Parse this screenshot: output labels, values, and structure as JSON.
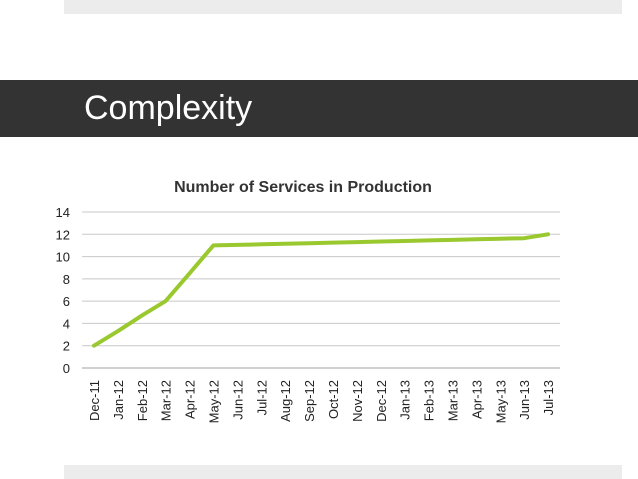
{
  "slide": {
    "title": "Complexity"
  },
  "colors": {
    "title_bar": "#333333",
    "series": "#9ac82f"
  },
  "chart_data": {
    "type": "line",
    "title": "Number of Services in Production",
    "xlabel": "",
    "ylabel": "",
    "categories": [
      "Dec-11",
      "Jan-12",
      "Feb-12",
      "Mar-12",
      "Apr-12",
      "May-12",
      "Jun-12",
      "Jul-12",
      "Aug-12",
      "Sep-12",
      "Oct-12",
      "Nov-12",
      "Dec-12",
      "Jan-13",
      "Feb-13",
      "Mar-13",
      "Apr-13",
      "May-13",
      "Jun-13",
      "Jul-13"
    ],
    "series": [
      {
        "values": [
          2,
          3.3,
          4.7,
          6,
          8.5,
          11,
          11.05,
          11.1,
          11.15,
          11.2,
          11.25,
          11.3,
          11.35,
          11.4,
          11.45,
          11.5,
          11.55,
          11.6,
          11.65,
          12
        ]
      }
    ],
    "ylim": [
      0,
      14
    ],
    "yticks": [
      0,
      2,
      4,
      6,
      8,
      10,
      12,
      14
    ],
    "grid": true,
    "legend": "none"
  }
}
